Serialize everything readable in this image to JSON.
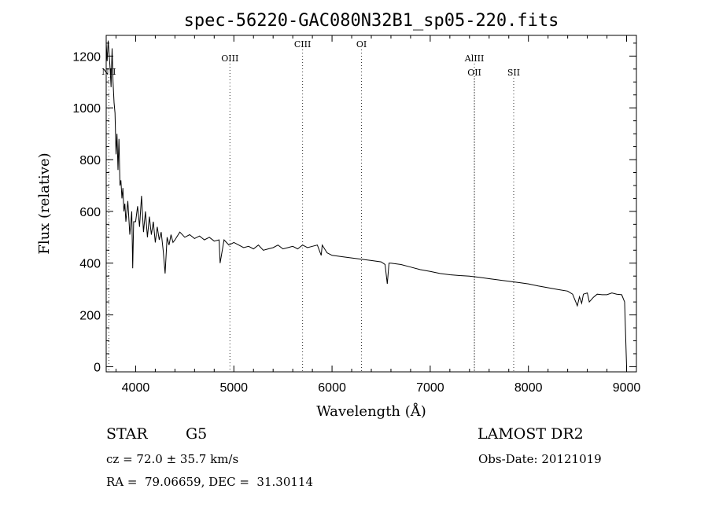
{
  "chart_data": {
    "type": "line",
    "title": "spec-56220-GAC080N32B1_sp05-220.fits",
    "xlabel": "Wavelength (Å)",
    "ylabel": "Flux (relative)",
    "xlim": [
      3700,
      9100
    ],
    "ylim": [
      -20,
      1280
    ],
    "xticks": [
      4000,
      5000,
      6000,
      7000,
      8000,
      9000
    ],
    "yticks": [
      0,
      200,
      400,
      600,
      800,
      1000,
      1200
    ],
    "series": [
      {
        "x": [
          3700,
          3710,
          3720,
          3730,
          3740,
          3750,
          3760,
          3770,
          3780,
          3790,
          3800,
          3810,
          3820,
          3830,
          3840,
          3850,
          3860,
          3870,
          3880,
          3890,
          3900,
          3920,
          3940,
          3960,
          3970,
          3980,
          4000,
          4020,
          4040,
          4060,
          4080,
          4100,
          4120,
          4140,
          4160,
          4180,
          4200,
          4220,
          4240,
          4260,
          4280,
          4300,
          4320,
          4340,
          4360,
          4380,
          4400,
          4450,
          4500,
          4550,
          4600,
          4650,
          4700,
          4750,
          4800,
          4850,
          4860,
          4900,
          4950,
          5000,
          5050,
          5100,
          5150,
          5200,
          5250,
          5300,
          5350,
          5400,
          5450,
          5500,
          5550,
          5600,
          5650,
          5700,
          5750,
          5800,
          5850,
          5890,
          5900,
          5950,
          6000,
          6100,
          6200,
          6300,
          6400,
          6500,
          6540,
          6563,
          6580,
          6600,
          6700,
          6800,
          6900,
          7000,
          7100,
          7200,
          7300,
          7400,
          7500,
          7600,
          7700,
          7800,
          7900,
          8000,
          8100,
          8200,
          8300,
          8400,
          8450,
          8498,
          8520,
          8542,
          8560,
          8600,
          8620,
          8662,
          8700,
          8750,
          8800,
          8850,
          8900,
          8950,
          8980,
          9000
        ],
        "y": [
          1250,
          1180,
          1260,
          1210,
          1150,
          1080,
          1230,
          1100,
          1020,
          980,
          820,
          900,
          760,
          880,
          700,
          720,
          650,
          690,
          600,
          630,
          560,
          640,
          510,
          600,
          380,
          560,
          560,
          620,
          540,
          660,
          520,
          600,
          500,
          580,
          510,
          560,
          480,
          540,
          490,
          520,
          450,
          360,
          500,
          470,
          510,
          480,
          490,
          520,
          500,
          510,
          495,
          505,
          490,
          500,
          485,
          490,
          400,
          490,
          470,
          480,
          470,
          460,
          465,
          455,
          470,
          450,
          455,
          460,
          470,
          455,
          460,
          465,
          455,
          470,
          460,
          465,
          470,
          430,
          470,
          440,
          430,
          425,
          420,
          415,
          410,
          405,
          395,
          320,
          400,
          400,
          395,
          385,
          375,
          368,
          360,
          355,
          352,
          350,
          345,
          340,
          335,
          330,
          325,
          320,
          312,
          305,
          298,
          292,
          280,
          235,
          270,
          245,
          280,
          285,
          250,
          268,
          280,
          278,
          278,
          285,
          280,
          278,
          250,
          0
        ]
      }
    ],
    "line_markers": [
      {
        "label": "NII",
        "x": 3727,
        "tier": 3
      },
      {
        "label": "OIII",
        "x": 4960,
        "tier": 1
      },
      {
        "label": "CIII",
        "x": 5700,
        "tier": 0
      },
      {
        "label": "OI",
        "x": 6300,
        "tier": 0
      },
      {
        "label": "AlIII",
        "x": 7450,
        "tier": 1
      },
      {
        "label": "OII",
        "x": 7450,
        "tier": 2
      },
      {
        "label": "SII",
        "x": 7850,
        "tier": 2
      }
    ]
  },
  "info": {
    "object_type": "STAR",
    "subclass": "G5",
    "cz": "cz = 72.0 ± 35.7 km/s",
    "coords": "RA =  79.06659, DEC =  31.30114",
    "survey": "LAMOST DR2",
    "obs_date": "Obs-Date: 20121019"
  }
}
